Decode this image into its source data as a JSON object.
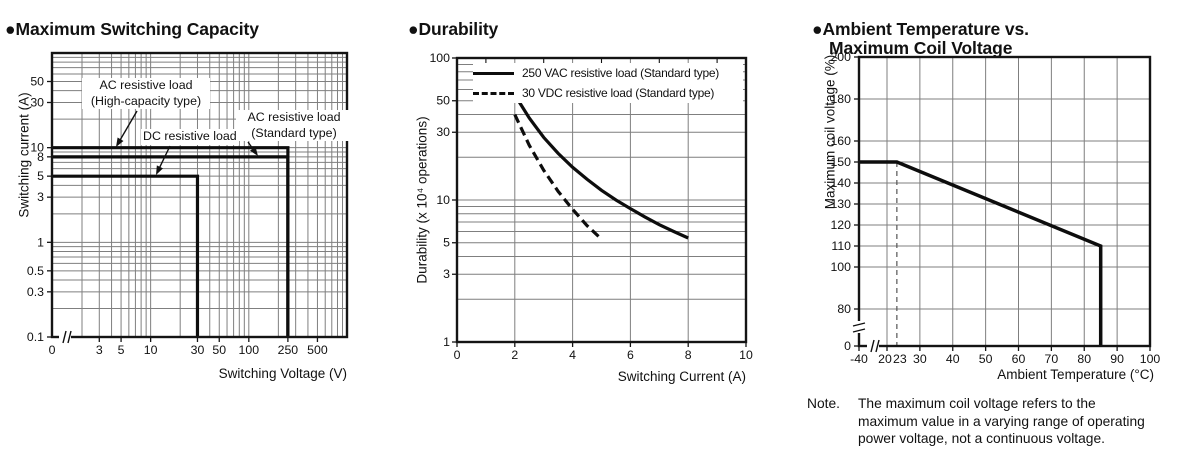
{
  "ui": {
    "bullet": "●"
  },
  "note": {
    "label": "Note.",
    "lines": [
      "The maximum coil voltage refers to the",
      "maximum value in a varying range of operating",
      "power voltage, not a continuous voltage."
    ]
  },
  "chart_data": [
    {
      "type": "line",
      "title": "Maximum Switching Capacity",
      "xlabel": "Switching Voltage (V)",
      "ylabel": "Switching current (A)",
      "x_scale": "log",
      "y_scale": "log",
      "xlim": [
        0,
        1000
      ],
      "ylim": [
        0.1,
        100
      ],
      "x_axis_break_after": "0",
      "grid": "log-log graph paper",
      "x_ticks": [
        {
          "v": 0,
          "label": "0"
        },
        {
          "v": 3,
          "label": "3"
        },
        {
          "v": 5,
          "label": "5"
        },
        {
          "v": 10,
          "label": "10"
        },
        {
          "v": 30,
          "label": "30"
        },
        {
          "v": 50,
          "label": "50"
        },
        {
          "v": 100,
          "label": "100"
        },
        {
          "v": 250,
          "label": "250"
        },
        {
          "v": 500,
          "label": "500"
        }
      ],
      "y_ticks": [
        {
          "v": 50,
          "label": "50"
        },
        {
          "v": 30,
          "label": "30"
        },
        {
          "v": 10,
          "label": "10"
        },
        {
          "v": 8,
          "label": "8"
        },
        {
          "v": 5,
          "label": "5"
        },
        {
          "v": 3,
          "label": "3"
        },
        {
          "v": 1,
          "label": "1"
        },
        {
          "v": 0.5,
          "label": "0.5"
        },
        {
          "v": 0.3,
          "label": "0.3"
        },
        {
          "v": 0.1,
          "label": "0.1"
        }
      ],
      "series": [
        {
          "name": "AC resistive load (High-capacity type)",
          "line_style": "solid",
          "points": [
            [
              0,
              10
            ],
            [
              250,
              10
            ],
            [
              250,
              0.1
            ]
          ]
        },
        {
          "name": "AC resistive load (Standard type)",
          "line_style": "solid",
          "points": [
            [
              0,
              8
            ],
            [
              250,
              8
            ],
            [
              250,
              0.1
            ]
          ]
        },
        {
          "name": "DC resistive load",
          "line_style": "solid",
          "points": [
            [
              0,
              5
            ],
            [
              30,
              5
            ],
            [
              30,
              0.1
            ]
          ]
        }
      ],
      "annotations": [
        {
          "lines": [
            "AC resistive load",
            "(High-capacity type)"
          ],
          "points_to": "10 A line"
        },
        {
          "lines": [
            "DC resistive load"
          ],
          "points_to": "5 A line"
        },
        {
          "lines": [
            "AC resistive load",
            "(Standard type)"
          ],
          "points_to": "8 A line"
        }
      ]
    },
    {
      "type": "line",
      "title": "Durability",
      "xlabel": "Switching Current (A)",
      "ylabel": "Durability (x 10⁴ operations)",
      "x_scale": "linear",
      "y_scale": "log",
      "xlim": [
        0,
        10
      ],
      "ylim": [
        1,
        100
      ],
      "legend_position": "top-inside",
      "x_ticks": [
        {
          "v": 0,
          "label": "0"
        },
        {
          "v": 2,
          "label": "2"
        },
        {
          "v": 4,
          "label": "4"
        },
        {
          "v": 6,
          "label": "6"
        },
        {
          "v": 8,
          "label": "8"
        },
        {
          "v": 10,
          "label": "10"
        }
      ],
      "y_ticks": [
        {
          "v": 100,
          "label": "100"
        },
        {
          "v": 50,
          "label": "50"
        },
        {
          "v": 30,
          "label": "30"
        },
        {
          "v": 10,
          "label": "10"
        },
        {
          "v": 5,
          "label": "5"
        },
        {
          "v": 3,
          "label": "3"
        },
        {
          "v": 1,
          "label": "1"
        }
      ],
      "series": [
        {
          "name": "250 VAC resistive load (Standard type)",
          "line_style": "solid",
          "points": [
            [
              2,
              55
            ],
            [
              2.5,
              37.8
            ],
            [
              3,
              27.6
            ],
            [
              3.5,
              21.3
            ],
            [
              4,
              17
            ],
            [
              4.5,
              14
            ],
            [
              5,
              11.7
            ],
            [
              5.5,
              10
            ],
            [
              6,
              8.7
            ],
            [
              6.5,
              7.6
            ],
            [
              7,
              6.7
            ],
            [
              7.5,
              6
            ],
            [
              8,
              5.4
            ]
          ]
        },
        {
          "name": "30 VDC resistive load (Standard type)",
          "line_style": "dashed",
          "points": [
            [
              2,
              40
            ],
            [
              2.5,
              24.3
            ],
            [
              3,
              16.2
            ],
            [
              3.5,
              11.5
            ],
            [
              4,
              8.6
            ],
            [
              4.5,
              6.6
            ],
            [
              5,
              5.3
            ]
          ]
        }
      ]
    },
    {
      "type": "line",
      "title": "Ambient Temperature vs. Maximum Coil Voltage",
      "title_lines": [
        "Ambient Temperature vs.",
        "Maximum Coil Voltage"
      ],
      "xlabel": "Ambient Temperature (°C)",
      "ylabel": "Maximum coil voltage (%)",
      "x_scale": "linear-with-break",
      "y_scale": "linear-with-break",
      "xlim": [
        -40,
        100
      ],
      "ylim": [
        0,
        200
      ],
      "reference_line_x": 23,
      "x_ticks": [
        {
          "v": -40,
          "label": "-40"
        },
        {
          "v": 20,
          "label": "20"
        },
        {
          "v": 23,
          "label": "23"
        },
        {
          "v": 30,
          "label": "30"
        },
        {
          "v": 40,
          "label": "40"
        },
        {
          "v": 50,
          "label": "50"
        },
        {
          "v": 60,
          "label": "60"
        },
        {
          "v": 70,
          "label": "70"
        },
        {
          "v": 80,
          "label": "80"
        },
        {
          "v": 90,
          "label": "90"
        },
        {
          "v": 100,
          "label": "100"
        }
      ],
      "y_ticks": [
        {
          "v": 200,
          "label": "200"
        },
        {
          "v": 180,
          "label": "180"
        },
        {
          "v": 160,
          "label": "160"
        },
        {
          "v": 150,
          "label": "150"
        },
        {
          "v": 140,
          "label": "140"
        },
        {
          "v": 130,
          "label": "130"
        },
        {
          "v": 120,
          "label": "120"
        },
        {
          "v": 110,
          "label": "110"
        },
        {
          "v": 100,
          "label": "100"
        },
        {
          "v": 80,
          "label": "80"
        },
        {
          "v": 0,
          "label": "0"
        }
      ],
      "series": [
        {
          "name": "Maximum coil voltage",
          "line_style": "solid",
          "points": [
            [
              -40,
              150
            ],
            [
              23,
              150
            ],
            [
              85,
              110
            ],
            [
              85,
              0
            ]
          ]
        }
      ]
    }
  ]
}
